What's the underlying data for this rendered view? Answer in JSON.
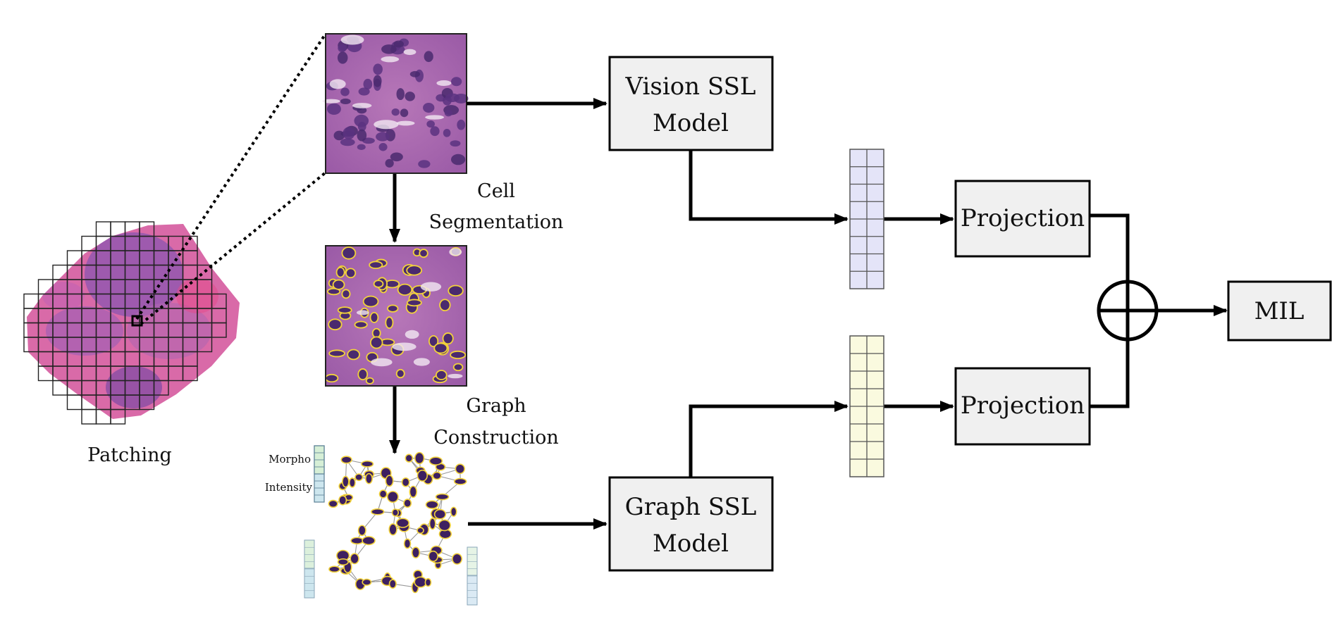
{
  "labels": {
    "patching": "Patching",
    "cell": "Cell",
    "segmentation": "Segmentation",
    "graph": "Graph",
    "construction": "Construction",
    "morpho": "Morpho",
    "intensity": "Intensity"
  },
  "boxes": {
    "vision_line1": "Vision SSL",
    "vision_line2": "Model",
    "graph_line1": "Graph SSL",
    "graph_line2": "Model",
    "projection_top": "Projection",
    "projection_bottom": "Projection",
    "mil": "MIL"
  },
  "colors": {
    "vision_embedding": "#e4e4f8",
    "graph_embedding": "#fafadf",
    "tissue_pink": "#d46aa8",
    "tissue_purple": "#7a4a9e",
    "cell_outline": "#f2d23a",
    "node_feature_blue": "#c8e0ee",
    "node_feature_green": "#d8f0d8"
  },
  "icons": {
    "aggregation": "circle-plus-icon"
  }
}
